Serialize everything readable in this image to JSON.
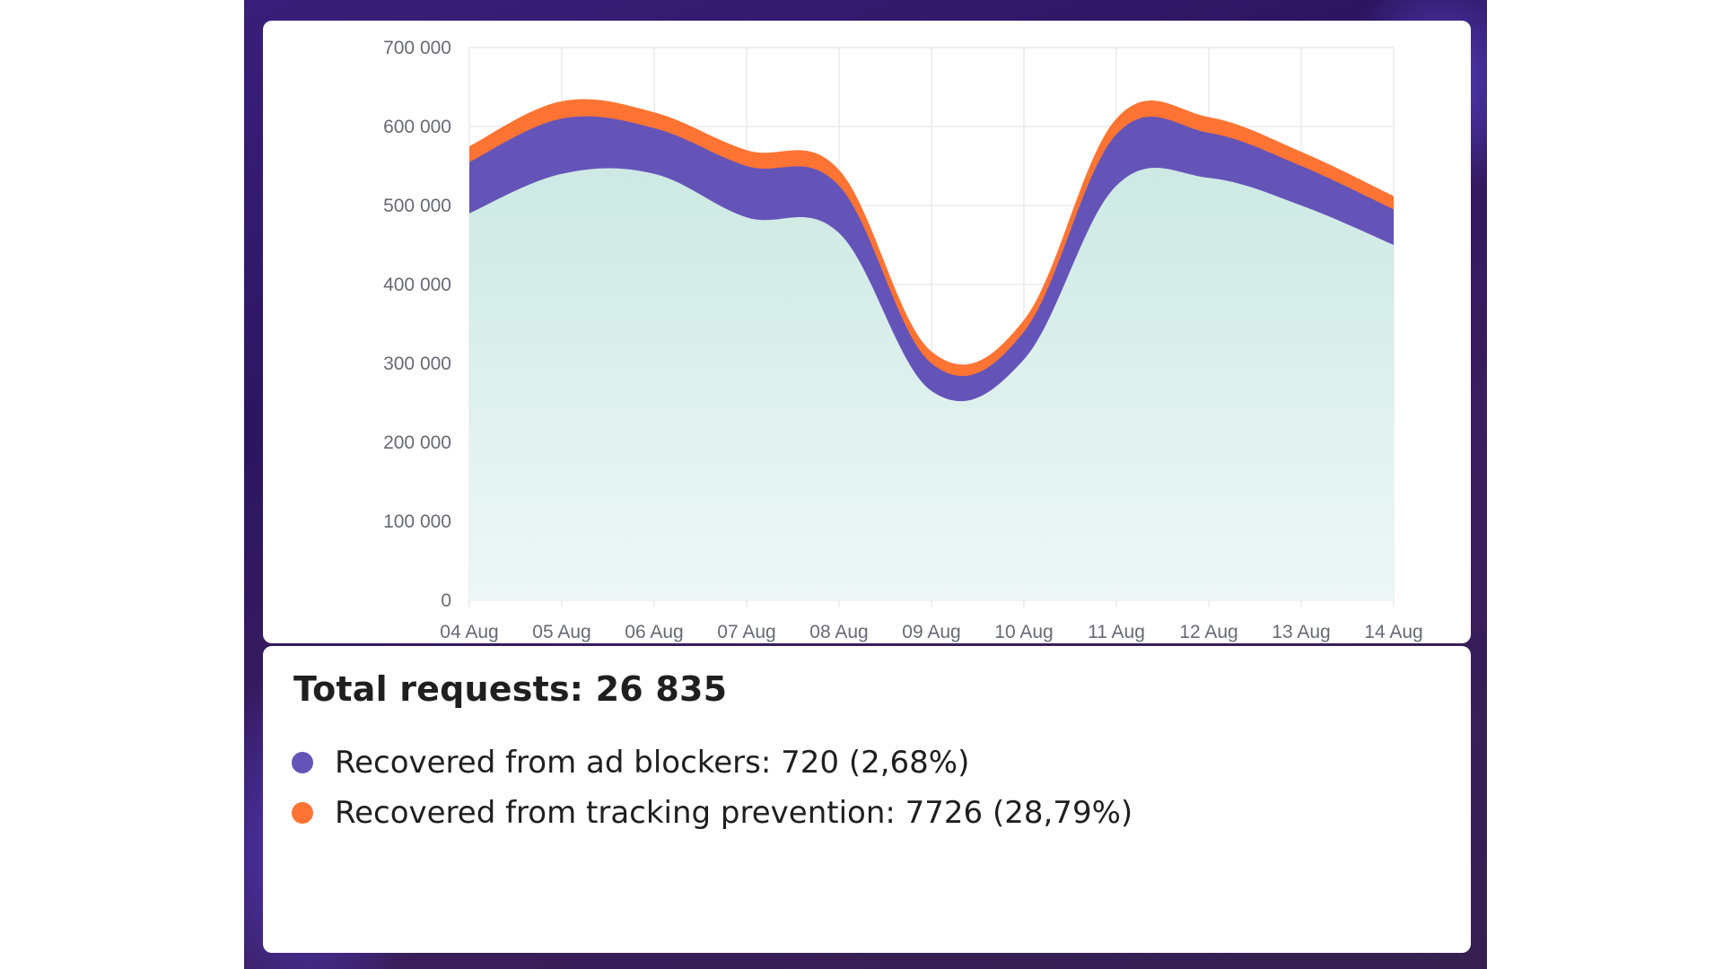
{
  "chart_data": {
    "type": "area",
    "stacked": true,
    "x": [
      "04 Aug",
      "05 Aug",
      "06 Aug",
      "07 Aug",
      "08 Aug",
      "09 Aug",
      "10 Aug",
      "11 Aug",
      "12 Aug",
      "13 Aug",
      "14 Aug"
    ],
    "series": [
      {
        "values": [
          490000,
          540000,
          540000,
          485000,
          465000,
          265000,
          305000,
          525000,
          535000,
          500000,
          450000
        ],
        "color": "#d2ebe6"
      },
      {
        "values": [
          65000,
          70000,
          58000,
          65000,
          60000,
          35000,
          35000,
          65000,
          57000,
          50000,
          45000
        ],
        "color": "#6554b8"
      },
      {
        "values": [
          20000,
          22000,
          20000,
          20000,
          20000,
          15000,
          15000,
          20000,
          20000,
          18000,
          17000
        ],
        "color": "#ff7433"
      }
    ],
    "ylim": [
      0,
      700000
    ],
    "y_ticks": [
      0,
      100000,
      200000,
      300000,
      400000,
      500000,
      600000,
      700000
    ],
    "y_tick_labels": [
      "0",
      "100 000",
      "200 000",
      "300 000",
      "400 000",
      "500 000",
      "600 000",
      "700 000"
    ],
    "grid": true,
    "legend": "none",
    "title": "",
    "xlabel": "",
    "ylabel": ""
  },
  "summary": {
    "total": "Total requests: 26 835",
    "items": [
      {
        "label": "Recovered from ad blockers: 720 (2,68%)",
        "color": "#6554b8"
      },
      {
        "label": "Recovered from tracking prevention: 7726 (28,79%)",
        "color": "#ff7433"
      }
    ]
  }
}
